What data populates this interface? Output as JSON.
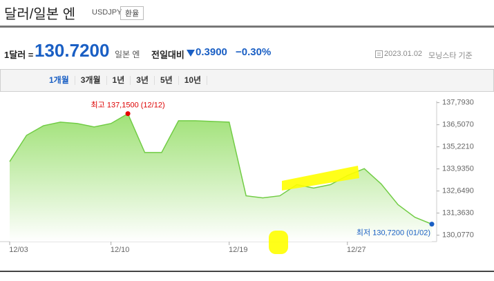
{
  "header": {
    "title": "달러/일본 엔",
    "code": "USDJPY",
    "button": "환율"
  },
  "rate": {
    "prefix": "1달러 =",
    "value": "130.7200",
    "unit": "일본 엔",
    "change_label": "전일대비",
    "change": "0.3900",
    "change_pct": "−0.30%"
  },
  "source": {
    "date": "2023.01.02",
    "note": "모닝스타 기준"
  },
  "tabs": [
    "1개월",
    "3개월",
    "1년",
    "3년",
    "5년",
    "10년"
  ],
  "chart_data": {
    "type": "area",
    "categories": [
      "12/03",
      null,
      null,
      null,
      null,
      null,
      "12/10",
      null,
      null,
      null,
      null,
      null,
      null,
      "12/19",
      null,
      null,
      null,
      null,
      null,
      null,
      "12/27",
      null,
      null,
      null,
      null,
      null
    ],
    "values": [
      134.36,
      135.89,
      136.45,
      136.66,
      136.58,
      136.38,
      136.58,
      137.15,
      134.89,
      134.89,
      136.74,
      136.74,
      136.7,
      136.66,
      132.37,
      132.25,
      132.37,
      133.02,
      132.82,
      133.02,
      133.55,
      133.95,
      133.06,
      131.85,
      131.12,
      130.72
    ],
    "color": "#71cc45",
    "ylim": [
      129.7,
      137.9
    ],
    "yticks": [
      {
        "value": 137.793,
        "label": "137,7930"
      },
      {
        "value": 136.507,
        "label": "136,5070"
      },
      {
        "value": 135.221,
        "label": "135,2210"
      },
      {
        "value": 133.935,
        "label": "133,9350"
      },
      {
        "value": 132.649,
        "label": "132,6490"
      },
      {
        "value": 131.363,
        "label": "131,3630"
      },
      {
        "value": 130.077,
        "label": "130,0770"
      }
    ],
    "annotations": {
      "high": "최고 137,1500 (12/12)",
      "low": "최저 130,7200 (01/02)"
    }
  }
}
